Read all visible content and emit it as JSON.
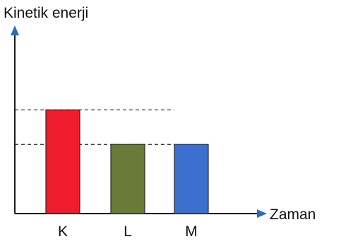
{
  "chart_data": {
    "type": "bar",
    "categories": [
      "K",
      "L",
      "M"
    ],
    "values": [
      3,
      2,
      2
    ],
    "ylim": [
      0,
      5.4
    ],
    "ylabel": "Kinetik enerji",
    "xlabel": "Zaman",
    "y_ticks": false,
    "grid": false,
    "reference_lines_at": [
      3,
      2
    ],
    "colors": [
      "#ee1c2d",
      "#6a7a37",
      "#3b6fd0"
    ],
    "axis_color": "#2a6cc0"
  }
}
